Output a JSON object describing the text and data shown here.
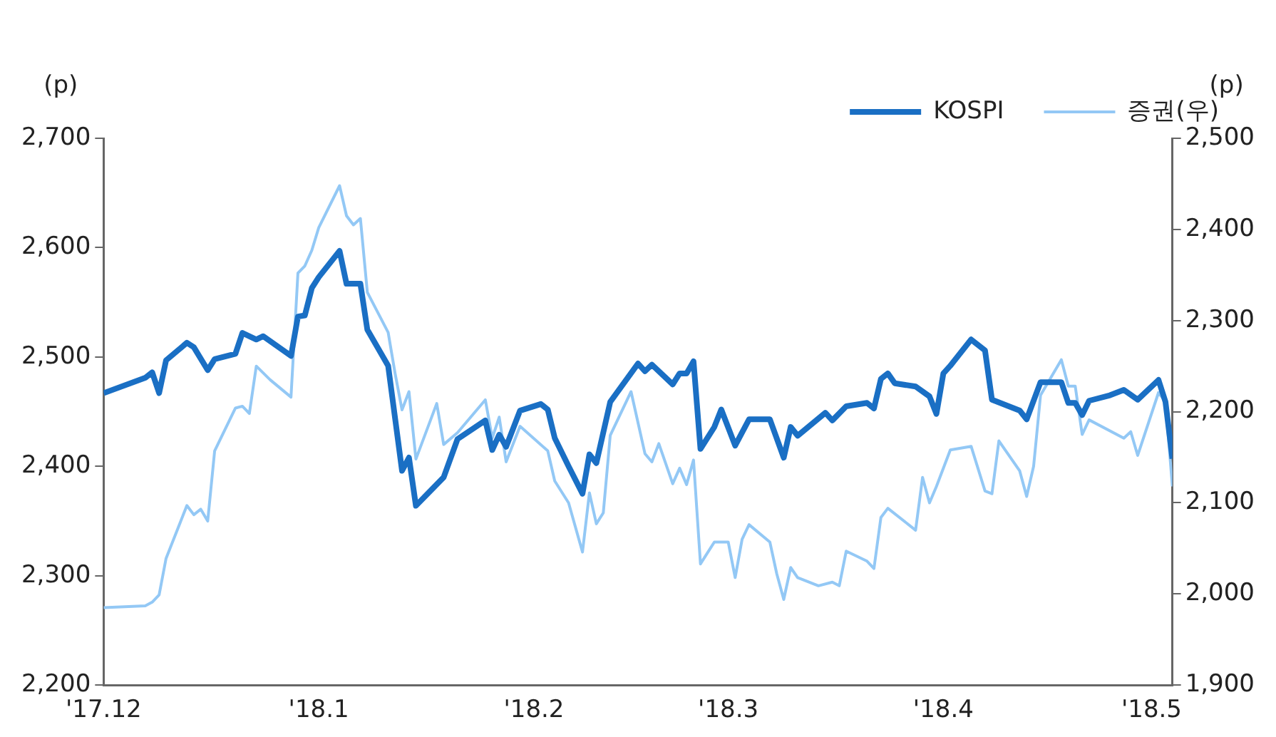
{
  "chart_data": {
    "type": "line",
    "ylabel": "(p)",
    "y2label": "(p)",
    "legend": "top right",
    "grid": false,
    "marker": "none",
    "line_style": "solid",
    "xlim": [
      "2017-12-01",
      "2018-05-04"
    ],
    "xticks": [
      {
        "value": "2017-12-01",
        "label": "'17.12"
      },
      {
        "value": "2018-01-01",
        "label": "'18.1"
      },
      {
        "value": "2018-02-01",
        "label": "'18.2"
      },
      {
        "value": "2018-03-01",
        "label": "'18.3"
      },
      {
        "value": "2018-04-01",
        "label": "'18.4"
      },
      {
        "value": "2018-05-01",
        "label": "'18.5"
      }
    ],
    "ylim": [
      2200,
      2700
    ],
    "yticks": [
      {
        "value": 2200,
        "label": "2,200"
      },
      {
        "value": 2300,
        "label": "2,300"
      },
      {
        "value": 2400,
        "label": "2,400"
      },
      {
        "value": 2500,
        "label": "2,500"
      },
      {
        "value": 2600,
        "label": "2,600"
      },
      {
        "value": 2700,
        "label": "2,700"
      }
    ],
    "y2lim": [
      1900,
      2500
    ],
    "y2ticks": [
      {
        "value": 1900,
        "label": "1,900"
      },
      {
        "value": 2000,
        "label": "2,000"
      },
      {
        "value": 2100,
        "label": "2,100"
      },
      {
        "value": 2200,
        "label": "2,200"
      },
      {
        "value": 2300,
        "label": "2,300"
      },
      {
        "value": 2400,
        "label": "2,400"
      },
      {
        "value": 2500,
        "label": "2,500"
      }
    ],
    "series": [
      {
        "name": "KOSPI",
        "color": "#1a6fc4",
        "x": [
          "2017-12-01",
          "2017-12-07",
          "2017-12-08",
          "2017-12-09",
          "2017-12-10",
          "2017-12-13",
          "2017-12-14",
          "2017-12-16",
          "2017-12-17",
          "2017-12-20",
          "2017-12-21",
          "2017-12-23",
          "2017-12-24",
          "2017-12-28",
          "2017-12-29",
          "2017-12-30",
          "2017-12-31",
          "2018-01-01",
          "2018-01-04",
          "2018-01-05",
          "2018-01-07",
          "2018-01-08",
          "2018-01-11",
          "2018-01-13",
          "2018-01-14",
          "2018-01-15",
          "2018-01-19",
          "2018-01-21",
          "2018-01-25",
          "2018-01-26",
          "2018-01-27",
          "2018-01-28",
          "2018-01-30",
          "2018-02-02",
          "2018-02-03",
          "2018-02-04",
          "2018-02-06",
          "2018-02-08",
          "2018-02-09",
          "2018-02-10",
          "2018-02-12",
          "2018-02-16",
          "2018-02-17",
          "2018-02-18",
          "2018-02-21",
          "2018-02-22",
          "2018-02-23",
          "2018-02-24",
          "2018-02-25",
          "2018-02-27",
          "2018-02-28",
          "2018-03-02",
          "2018-03-04",
          "2018-03-07",
          "2018-03-09",
          "2018-03-10",
          "2018-03-11",
          "2018-03-15",
          "2018-03-16",
          "2018-03-18",
          "2018-03-21",
          "2018-03-22",
          "2018-03-23",
          "2018-03-24",
          "2018-03-25",
          "2018-03-28",
          "2018-03-30",
          "2018-03-31",
          "2018-04-01",
          "2018-04-02",
          "2018-04-05",
          "2018-04-07",
          "2018-04-08",
          "2018-04-12",
          "2018-04-13",
          "2018-04-15",
          "2018-04-18",
          "2018-04-19",
          "2018-04-20",
          "2018-04-21",
          "2018-04-22",
          "2018-04-25",
          "2018-04-27",
          "2018-04-29",
          "2018-05-02",
          "2018-05-03",
          "2018-05-04"
        ],
        "values": [
          2467,
          2481,
          2486,
          2467,
          2497,
          2513,
          2509,
          2488,
          2498,
          2503,
          2522,
          2516,
          2519,
          2501,
          2537,
          2538,
          2563,
          2573,
          2597,
          2567,
          2567,
          2525,
          2492,
          2396,
          2408,
          2364,
          2390,
          2425,
          2442,
          2415,
          2429,
          2418,
          2451,
          2457,
          2452,
          2426,
          2400,
          2375,
          2411,
          2403,
          2459,
          2494,
          2487,
          2493,
          2475,
          2485,
          2485,
          2496,
          2416,
          2436,
          2452,
          2419,
          2443,
          2443,
          2408,
          2436,
          2428,
          2449,
          2442,
          2455,
          2458,
          2453,
          2480,
          2485,
          2476,
          2473,
          2464,
          2448,
          2485,
          2492,
          2516,
          2506,
          2461,
          2451,
          2443,
          2477,
          2477,
          2458,
          2458,
          2447,
          2460,
          2465,
          2470,
          2461,
          2479,
          2459,
          2407
        ]
      },
      {
        "name": "증권(우)",
        "color": "#93c8f5",
        "axis": "y2",
        "x": [
          "2017-12-01",
          "2017-12-07",
          "2017-12-08",
          "2017-12-09",
          "2017-12-10",
          "2017-12-13",
          "2017-12-14",
          "2017-12-15",
          "2017-12-16",
          "2017-12-17",
          "2017-12-20",
          "2017-12-21",
          "2017-12-22",
          "2017-12-23",
          "2017-12-25",
          "2017-12-28",
          "2017-12-29",
          "2017-12-30",
          "2017-12-31",
          "2018-01-01",
          "2018-01-04",
          "2018-01-05",
          "2018-01-06",
          "2018-01-07",
          "2018-01-08",
          "2018-01-11",
          "2018-01-12",
          "2018-01-13",
          "2018-01-14",
          "2018-01-15",
          "2018-01-18",
          "2018-01-19",
          "2018-01-21",
          "2018-01-25",
          "2018-01-26",
          "2018-01-27",
          "2018-01-28",
          "2018-01-30",
          "2018-02-03",
          "2018-02-04",
          "2018-02-06",
          "2018-02-08",
          "2018-02-09",
          "2018-02-10",
          "2018-02-11",
          "2018-02-12",
          "2018-02-15",
          "2018-02-17",
          "2018-02-18",
          "2018-02-19",
          "2018-02-21",
          "2018-02-22",
          "2018-02-23",
          "2018-02-24",
          "2018-02-25",
          "2018-02-27",
          "2018-03-01",
          "2018-03-02",
          "2018-03-03",
          "2018-03-04",
          "2018-03-07",
          "2018-03-08",
          "2018-03-09",
          "2018-03-10",
          "2018-03-11",
          "2018-03-14",
          "2018-03-16",
          "2018-03-17",
          "2018-03-18",
          "2018-03-21",
          "2018-03-22",
          "2018-03-23",
          "2018-03-24",
          "2018-03-28",
          "2018-03-29",
          "2018-03-30",
          "2018-03-31",
          "2018-04-02",
          "2018-04-05",
          "2018-04-07",
          "2018-04-08",
          "2018-04-09",
          "2018-04-12",
          "2018-04-13",
          "2018-04-14",
          "2018-04-15",
          "2018-04-18",
          "2018-04-19",
          "2018-04-20",
          "2018-04-21",
          "2018-04-22",
          "2018-04-27",
          "2018-04-28",
          "2018-04-29",
          "2018-05-02",
          "2018-05-03",
          "2018-05-04"
        ],
        "values": [
          1985,
          1987,
          1991,
          1999,
          2039,
          2097,
          2087,
          2093,
          2080,
          2157,
          2204,
          2206,
          2198,
          2250,
          2235,
          2216,
          2352,
          2360,
          2377,
          2402,
          2448,
          2415,
          2405,
          2412,
          2331,
          2287,
          2242,
          2202,
          2222,
          2148,
          2209,
          2164,
          2177,
          2213,
          2171,
          2194,
          2145,
          2184,
          2157,
          2124,
          2100,
          2046,
          2111,
          2077,
          2089,
          2174,
          2222,
          2154,
          2145,
          2165,
          2121,
          2138,
          2120,
          2147,
          2033,
          2057,
          2057,
          2018,
          2060,
          2076,
          2057,
          2022,
          1994,
          2029,
          2018,
          2009,
          2013,
          2009,
          2047,
          2036,
          2028,
          2084,
          2094,
          2070,
          2128,
          2100,
          2118,
          2158,
          2162,
          2113,
          2110,
          2168,
          2135,
          2107,
          2140,
          2218,
          2257,
          2228,
          2228,
          2175,
          2191,
          2171,
          2178,
          2152,
          2221,
          2211,
          2118
        ]
      }
    ]
  }
}
